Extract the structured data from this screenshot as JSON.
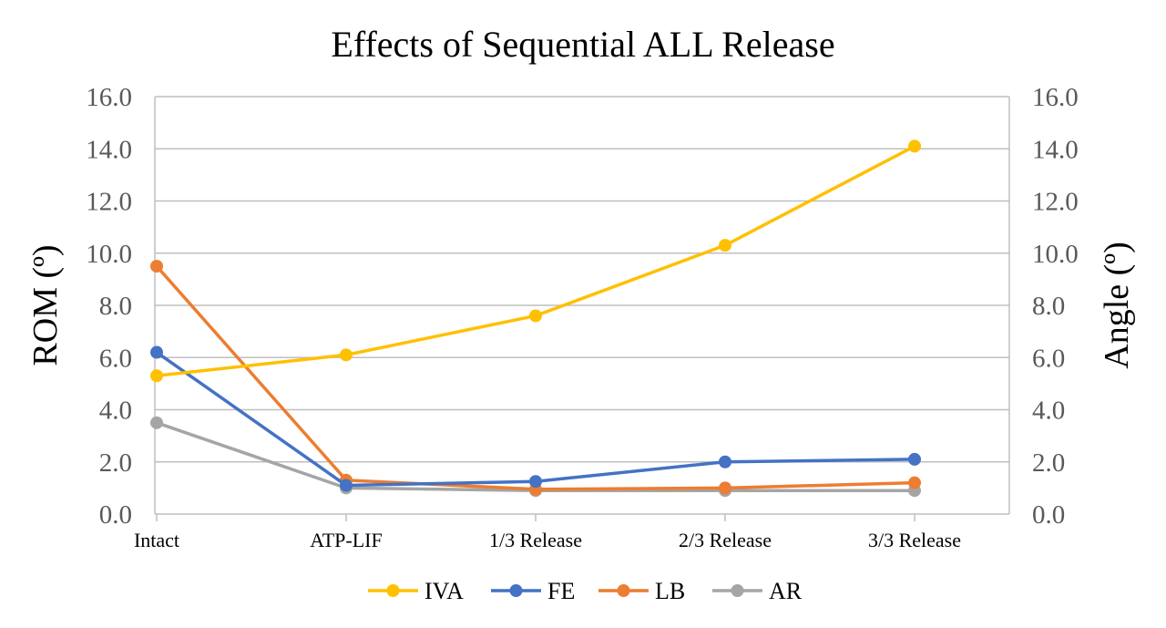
{
  "chart_data": {
    "type": "line",
    "title": "Effects of Sequential ALL Release",
    "ylabel": "ROM (º)",
    "y2label": "Angle (º)",
    "ylim": [
      0,
      16
    ],
    "y2lim": [
      0,
      16
    ],
    "yticks": [
      "0.0",
      "2.0",
      "4.0",
      "6.0",
      "8.0",
      "10.0",
      "12.0",
      "14.0",
      "16.0"
    ],
    "y2ticks": [
      "0.0",
      "2.0",
      "4.0",
      "6.0",
      "8.0",
      "10.0",
      "12.0",
      "14.0",
      "16.0"
    ],
    "categories": [
      "Intact",
      "ATP-LIF",
      "1/3 Release",
      "2/3 Release",
      "3/3 Release"
    ],
    "grid": true,
    "legend_position": "bottom",
    "series": [
      {
        "name": "IVA",
        "axis": "right",
        "color": "#FFC000",
        "values": [
          5.3,
          6.1,
          7.6,
          10.3,
          14.1
        ]
      },
      {
        "name": "FE",
        "axis": "left",
        "color": "#4472C4",
        "values": [
          6.2,
          1.1,
          1.25,
          2.0,
          2.1
        ]
      },
      {
        "name": "LB",
        "axis": "left",
        "color": "#ED7D31",
        "values": [
          9.5,
          1.3,
          0.95,
          1.0,
          1.2
        ]
      },
      {
        "name": "AR",
        "axis": "left",
        "color": "#A5A5A5",
        "values": [
          3.5,
          1.0,
          0.9,
          0.9,
          0.9
        ]
      }
    ]
  }
}
